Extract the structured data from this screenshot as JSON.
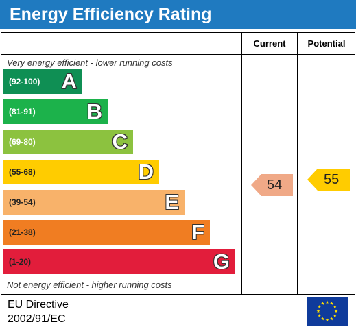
{
  "title": "Energy Efficiency Rating",
  "columns": {
    "current": "Current",
    "potential": "Potential"
  },
  "top_note": "Very energy efficient - lower running costs",
  "bottom_note": "Not energy efficient - higher running costs",
  "bands": [
    {
      "range": "(92-100)",
      "letter": "A",
      "color": "#0f8f54"
    },
    {
      "range": "(81-91)",
      "letter": "B",
      "color": "#1cb24b"
    },
    {
      "range": "(69-80)",
      "letter": "C",
      "color": "#8cc23f"
    },
    {
      "range": "(55-68)",
      "letter": "D",
      "color": "#ffcc00"
    },
    {
      "range": "(39-54)",
      "letter": "E",
      "color": "#f8b26a"
    },
    {
      "range": "(21-38)",
      "letter": "F",
      "color": "#f07d22"
    },
    {
      "range": "(1-20)",
      "letter": "G",
      "color": "#e21d3b"
    }
  ],
  "current": {
    "value": "54",
    "color": "#f0a987"
  },
  "potential": {
    "value": "55",
    "color": "#ffcc00"
  },
  "directive": {
    "line1": "EU Directive",
    "line2": "2002/91/EC"
  },
  "flag_icon": "eu-flag-icon"
}
